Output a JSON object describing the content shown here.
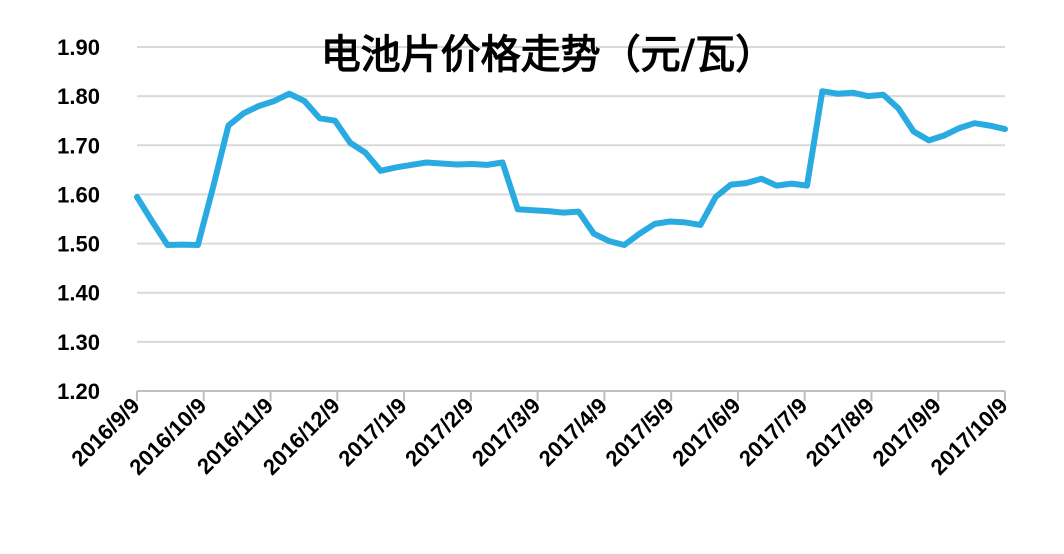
{
  "chart_data": {
    "type": "line",
    "title": "电池片价格走势（元/瓦）",
    "xlabel": "",
    "ylabel": "",
    "ylim": [
      1.2,
      1.9
    ],
    "yticks": [
      "1.20",
      "1.30",
      "1.40",
      "1.50",
      "1.60",
      "1.70",
      "1.80",
      "1.90"
    ],
    "xticks": [
      "2016/9/9",
      "2016/10/9",
      "2016/11/9",
      "2016/12/9",
      "2017/1/9",
      "2017/2/9",
      "2017/3/9",
      "2017/4/9",
      "2017/5/9",
      "2017/6/9",
      "2017/7/9",
      "2017/8/9",
      "2017/9/9",
      "2017/10/9"
    ],
    "grid": true,
    "line_color": "#29abe2",
    "series": [
      {
        "values": [
          1.595,
          1.545,
          1.497,
          1.498,
          1.497,
          1.615,
          1.74,
          1.765,
          1.78,
          1.79,
          1.805,
          1.79,
          1.755,
          1.75,
          1.705,
          1.685,
          1.648,
          1.655,
          1.66,
          1.665,
          1.663,
          1.661,
          1.662,
          1.66,
          1.665,
          1.57,
          1.568,
          1.566,
          1.563,
          1.565,
          1.52,
          1.505,
          1.497,
          1.52,
          1.54,
          1.545,
          1.543,
          1.538,
          1.595,
          1.62,
          1.623,
          1.632,
          1.618,
          1.622,
          1.618,
          1.81,
          1.805,
          1.807,
          1.8,
          1.803,
          1.775,
          1.728,
          1.71,
          1.72,
          1.735,
          1.745,
          1.74,
          1.733
        ]
      }
    ]
  }
}
